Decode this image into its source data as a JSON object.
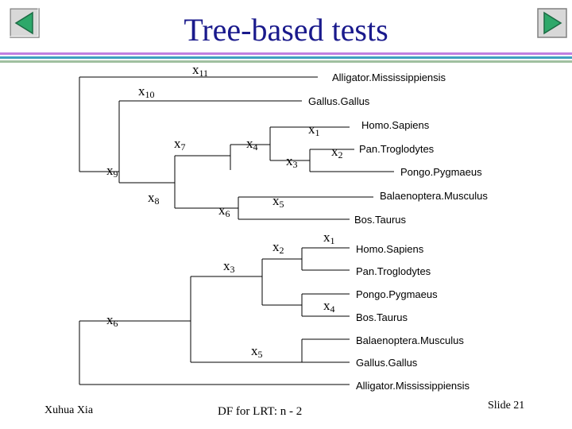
{
  "title": "Tree-based tests",
  "colors": {
    "title": "#1a1a8c",
    "bar1": "#c080e0",
    "bar2": "#40a0c0",
    "bar3": "#a0c0a0",
    "button_fill": "#2ea86a"
  },
  "nav": {
    "prev_icon": "triangle-left-icon",
    "next_icon": "triangle-right-icon"
  },
  "tree1": {
    "labels": {
      "x11": {
        "base": "x",
        "sub": "11"
      },
      "x10": {
        "base": "x",
        "sub": "10"
      },
      "x9": {
        "base": "x",
        "sub": "9"
      },
      "x7": {
        "base": "x",
        "sub": "7"
      },
      "x8": {
        "base": "x",
        "sub": "8"
      },
      "x4": {
        "base": "x",
        "sub": "4"
      },
      "x3": {
        "base": "x",
        "sub": "3"
      },
      "x1": {
        "base": "x",
        "sub": "1"
      },
      "x2": {
        "base": "x",
        "sub": "2"
      },
      "x6": {
        "base": "x",
        "sub": "6"
      },
      "x5": {
        "base": "x",
        "sub": "5"
      }
    },
    "taxa": [
      "Alligator.Mississippiensis",
      "Gallus.Gallus",
      "Homo.Sapiens",
      "Pan.Troglodytes",
      "Pongo.Pygmaeus",
      "Balaenoptera.Musculus",
      "Bos.Taurus"
    ]
  },
  "tree2": {
    "labels": {
      "x6": {
        "base": "x",
        "sub": "6"
      },
      "x3": {
        "base": "x",
        "sub": "3"
      },
      "x2": {
        "base": "x",
        "sub": "2"
      },
      "x1": {
        "base": "x",
        "sub": "1"
      },
      "x4": {
        "base": "x",
        "sub": "4"
      },
      "x5": {
        "base": "x",
        "sub": "5"
      }
    },
    "taxa": [
      "Homo.Sapiens",
      "Pan.Troglodytes",
      "Pongo.Pygmaeus",
      "Bos.Taurus",
      "Balaenoptera.Musculus",
      "Gallus.Gallus",
      "Alligator.Mississippiensis"
    ]
  },
  "footer": {
    "author": "Xuhua Xia",
    "center": "DF for LRT: n - 2",
    "slide": "Slide 21"
  }
}
